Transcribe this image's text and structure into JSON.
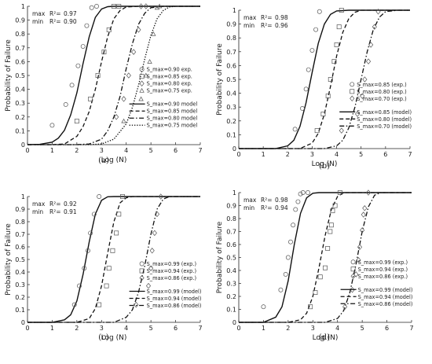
{
  "figure": {
    "shared": {
      "ylabel": "Probability of Failure",
      "xlabel": "Log (N)",
      "x_ticks": [
        "0",
        "1",
        "2",
        "3",
        "4",
        "5",
        "6",
        "7"
      ],
      "y_ticks": [
        "0",
        "0.1",
        "0.2",
        "0.3",
        "0.4",
        "0.5",
        "0.6",
        "0.7",
        "0.8",
        "0.9",
        "1"
      ],
      "r2_max_prefix": "max",
      "r2_min_prefix": "min",
      "r2_symbol": "R²="
    }
  },
  "chart_data": [
    {
      "type": "line",
      "panel_label": "(a)",
      "xlabel": "Log (N)",
      "ylabel": "Probability of Failure",
      "xlim": [
        0,
        7
      ],
      "ylim": [
        0,
        1
      ],
      "r2": {
        "max": "0.97",
        "min": "0.90"
      },
      "legend_placement": "right",
      "series": [
        {
          "name": "S_max=0.90 exp.",
          "marker": "circle",
          "x": [
            1.0,
            1.55,
            1.8,
            2.05,
            2.25,
            2.4,
            2.6,
            2.8
          ],
          "y": [
            0.14,
            0.29,
            0.43,
            0.57,
            0.71,
            0.86,
            0.99,
            1.0
          ]
        },
        {
          "name": "S_max=0.85 exp.",
          "marker": "square",
          "x": [
            2.0,
            2.55,
            2.85,
            3.1,
            3.3,
            3.5,
            3.7
          ],
          "y": [
            0.17,
            0.33,
            0.5,
            0.67,
            0.83,
            1.0,
            1.0
          ]
        },
        {
          "name": "S_max=0.80 exp.",
          "marker": "diamond",
          "x": [
            3.6,
            3.9,
            4.1,
            4.3,
            4.5,
            4.6,
            4.8
          ],
          "y": [
            0.2,
            0.33,
            0.5,
            0.67,
            0.83,
            1.0,
            1.0
          ]
        },
        {
          "name": "S_max=0.75 exp.",
          "marker": "triangle",
          "x": [
            3.9,
            4.6,
            4.8,
            4.95,
            5.1,
            5.25,
            5.35
          ],
          "y": [
            0.17,
            0.33,
            0.5,
            0.6,
            0.8,
            0.99,
            1.0
          ]
        },
        {
          "name": "S_max=0.90 model",
          "style": "solid",
          "x": [
            0,
            0.5,
            1,
            1.25,
            1.5,
            1.75,
            2,
            2.25,
            2.5,
            2.75,
            3,
            3.25,
            3.5,
            4,
            5,
            6,
            7
          ],
          "y": [
            0.0,
            0.002,
            0.018,
            0.047,
            0.104,
            0.215,
            0.375,
            0.585,
            0.78,
            0.92,
            0.98,
            0.997,
            1.0,
            1.0,
            1.0,
            1.0,
            1.0
          ]
        },
        {
          "name": "S_max=0.85 model",
          "style": "dashed",
          "x": [
            0,
            1,
            1.5,
            2,
            2.25,
            2.5,
            2.75,
            3,
            3.25,
            3.5,
            3.75,
            4,
            4.5,
            5,
            6,
            7
          ],
          "y": [
            0.0,
            0.0,
            0.005,
            0.06,
            0.13,
            0.24,
            0.4,
            0.6,
            0.78,
            0.91,
            0.97,
            0.995,
            1.0,
            1.0,
            1.0,
            1.0
          ]
        },
        {
          "name": "S_max=0.80 model",
          "style": "dashdot",
          "x": [
            0,
            2,
            2.5,
            3,
            3.25,
            3.5,
            3.75,
            4,
            4.25,
            4.5,
            4.75,
            5,
            5.5,
            6,
            7
          ],
          "y": [
            0.0,
            0.0,
            0.005,
            0.04,
            0.1,
            0.2,
            0.35,
            0.55,
            0.73,
            0.87,
            0.95,
            0.99,
            1.0,
            1.0,
            1.0
          ]
        },
        {
          "name": "S_max=0.75 model",
          "style": "dotted",
          "x": [
            0,
            2.5,
            3,
            3.5,
            4,
            4.25,
            4.5,
            4.75,
            5,
            5.25,
            5.5,
            5.75,
            6,
            7
          ],
          "y": [
            0.0,
            0.0,
            0.005,
            0.04,
            0.15,
            0.27,
            0.43,
            0.62,
            0.79,
            0.91,
            0.97,
            0.995,
            1.0,
            1.0
          ]
        }
      ]
    },
    {
      "type": "line",
      "panel_label": "(b)",
      "xlabel": "Log (N)",
      "ylabel": "Probability of Failure",
      "xlim": [
        0,
        7
      ],
      "ylim": [
        0,
        1
      ],
      "r2": {
        "max": "0.98",
        "min": "0.96"
      },
      "legend_placement": "right",
      "series": [
        {
          "name": "S_max=0.85 (exp.)",
          "marker": "circle",
          "x": [
            2.3,
            2.6,
            2.75,
            2.85,
            3.0,
            3.15,
            3.3
          ],
          "y": [
            0.14,
            0.29,
            0.43,
            0.57,
            0.71,
            0.86,
            0.99
          ]
        },
        {
          "name": "S_max=0.80 (exp.)",
          "marker": "square",
          "x": [
            3.2,
            3.45,
            3.65,
            3.75,
            3.9,
            4.0,
            4.1,
            4.2
          ],
          "y": [
            0.13,
            0.25,
            0.38,
            0.5,
            0.63,
            0.75,
            0.88,
            1.0
          ]
        },
        {
          "name": "S_max=0.70 (exp.)",
          "marker": "diamond",
          "x": [
            4.2,
            4.85,
            5.05,
            5.15,
            5.3,
            5.4,
            5.55,
            5.7
          ],
          "y": [
            0.13,
            0.25,
            0.38,
            0.5,
            0.63,
            0.75,
            0.88,
            0.99
          ]
        },
        {
          "name": "S_max=0.85 (model)",
          "style": "solid",
          "x": [
            0,
            1.5,
            2,
            2.25,
            2.5,
            2.75,
            3,
            3.25,
            3.5,
            3.75,
            4,
            4.5,
            7
          ],
          "y": [
            0.0,
            0.0,
            0.02,
            0.06,
            0.16,
            0.33,
            0.55,
            0.76,
            0.9,
            0.97,
            0.995,
            1.0,
            1.0
          ]
        },
        {
          "name": "S_max=0.80 (model)",
          "style": "dashed",
          "x": [
            0,
            2.5,
            3,
            3.25,
            3.5,
            3.75,
            4,
            4.25,
            4.5,
            4.75,
            5,
            5.5,
            7
          ],
          "y": [
            0.0,
            0.0,
            0.04,
            0.11,
            0.25,
            0.45,
            0.67,
            0.84,
            0.94,
            0.985,
            1.0,
            1.0,
            1.0
          ]
        },
        {
          "name": "S_max=0.70 (model)",
          "style": "dashdot",
          "x": [
            0,
            3.5,
            4,
            4.25,
            4.5,
            4.75,
            5,
            5.25,
            5.5,
            5.75,
            6,
            6.5,
            7
          ],
          "y": [
            0.0,
            0.0,
            0.02,
            0.06,
            0.15,
            0.3,
            0.5,
            0.7,
            0.86,
            0.95,
            0.99,
            1.0,
            1.0
          ]
        }
      ]
    },
    {
      "type": "line",
      "panel_label": "(c)",
      "xlabel": "Log (N)",
      "ylabel": "Probability of Failure",
      "xlim": [
        0,
        7
      ],
      "ylim": [
        0,
        1
      ],
      "r2": {
        "max": "0.92",
        "min": "0.91"
      },
      "legend_placement": "right",
      "series": [
        {
          "name": "S_max=0.99 (exp.)",
          "marker": "circle",
          "x": [
            1.9,
            2.1,
            2.3,
            2.45,
            2.55,
            2.7,
            2.9
          ],
          "y": [
            0.14,
            0.29,
            0.43,
            0.57,
            0.71,
            0.86,
            1.0
          ]
        },
        {
          "name": "S_max=0.94 (exp.)",
          "marker": "square",
          "x": [
            2.9,
            3.2,
            3.3,
            3.45,
            3.6,
            3.7,
            3.85
          ],
          "y": [
            0.14,
            0.29,
            0.43,
            0.57,
            0.71,
            0.86,
            1.0
          ]
        },
        {
          "name": "S_max=0.86 (exp.)",
          "marker": "diamond",
          "x": [
            4.4,
            4.9,
            5.0,
            5.05,
            5.15,
            5.25,
            5.4
          ],
          "y": [
            0.14,
            0.29,
            0.43,
            0.57,
            0.71,
            0.86,
            1.0
          ]
        },
        {
          "name": "S_max=0.99 (model)",
          "style": "solid",
          "x": [
            0,
            1,
            1.5,
            1.75,
            2,
            2.25,
            2.5,
            2.75,
            3,
            3.25,
            3.5,
            7
          ],
          "y": [
            0.0,
            0.0,
            0.02,
            0.06,
            0.17,
            0.38,
            0.64,
            0.86,
            0.97,
            0.998,
            1.0,
            1.0
          ]
        },
        {
          "name": "S_max=0.94 (model)",
          "style": "dashed",
          "x": [
            0,
            2,
            2.5,
            2.75,
            3,
            3.25,
            3.5,
            3.75,
            4,
            4.25,
            7
          ],
          "y": [
            0.0,
            0.0,
            0.03,
            0.11,
            0.29,
            0.55,
            0.8,
            0.95,
            0.99,
            1.0,
            1.0
          ]
        },
        {
          "name": "S_max=0.86 (model)",
          "style": "dashdot",
          "x": [
            0,
            3.5,
            4,
            4.25,
            4.5,
            4.75,
            5,
            5.25,
            5.5,
            5.75,
            7
          ],
          "y": [
            0.0,
            0.0,
            0.04,
            0.1,
            0.24,
            0.45,
            0.7,
            0.9,
            0.98,
            1.0,
            1.0
          ]
        }
      ]
    },
    {
      "type": "line",
      "panel_label": "(d)",
      "xlabel": "Log (N)",
      "ylabel": "Probability of Failure",
      "xlim": [
        0,
        7
      ],
      "ylim": [
        0,
        1
      ],
      "r2": {
        "max": "0.98",
        "min": "0.94"
      },
      "legend_placement": "right",
      "series": [
        {
          "name": "S_max=0.99 (exp.)",
          "marker": "circle",
          "x": [
            1.0,
            1.7,
            1.9,
            2.0,
            2.1,
            2.2,
            2.3,
            2.4,
            2.5,
            2.6,
            2.8
          ],
          "y": [
            0.12,
            0.25,
            0.37,
            0.5,
            0.62,
            0.75,
            0.87,
            0.93,
            0.99,
            1.0,
            1.0
          ]
        },
        {
          "name": "S_max=0.94 (exp.)",
          "marker": "square",
          "x": [
            2.9,
            3.1,
            3.3,
            3.5,
            3.6,
            3.7,
            3.75,
            3.8,
            3.9,
            4.1
          ],
          "y": [
            0.12,
            0.23,
            0.35,
            0.42,
            0.57,
            0.7,
            0.75,
            0.86,
            0.9,
            1.0
          ]
        },
        {
          "name": "S_max=0.86 (exp.)",
          "marker": "diamond",
          "x": [
            4.3,
            4.6,
            4.75,
            4.85,
            4.9,
            5.0,
            5.05,
            5.1,
            5.25
          ],
          "y": [
            0.12,
            0.25,
            0.37,
            0.48,
            0.58,
            0.71,
            0.83,
            0.88,
            1.0
          ]
        },
        {
          "name": "S_max=0.99 (model)",
          "style": "solid",
          "x": [
            0,
            1,
            1.5,
            1.75,
            2,
            2.25,
            2.5,
            2.75,
            3,
            3.25,
            7
          ],
          "y": [
            0.0,
            0.0,
            0.04,
            0.12,
            0.32,
            0.6,
            0.84,
            0.96,
            0.995,
            1.0,
            1.0
          ]
        },
        {
          "name": "S_max=0.94 (model)",
          "style": "dashed",
          "x": [
            0,
            2,
            2.5,
            2.75,
            3,
            3.25,
            3.5,
            3.75,
            4,
            4.25,
            7
          ],
          "y": [
            0.0,
            0.0,
            0.02,
            0.07,
            0.2,
            0.42,
            0.67,
            0.87,
            0.97,
            1.0,
            1.0
          ]
        },
        {
          "name": "S_max=0.86 (model)",
          "style": "dashdot",
          "x": [
            0,
            3.5,
            4,
            4.25,
            4.5,
            4.75,
            5,
            5.25,
            5.5,
            5.75,
            7
          ],
          "y": [
            0.0,
            0.0,
            0.03,
            0.09,
            0.23,
            0.45,
            0.7,
            0.89,
            0.98,
            1.0,
            1.0
          ]
        }
      ]
    }
  ]
}
